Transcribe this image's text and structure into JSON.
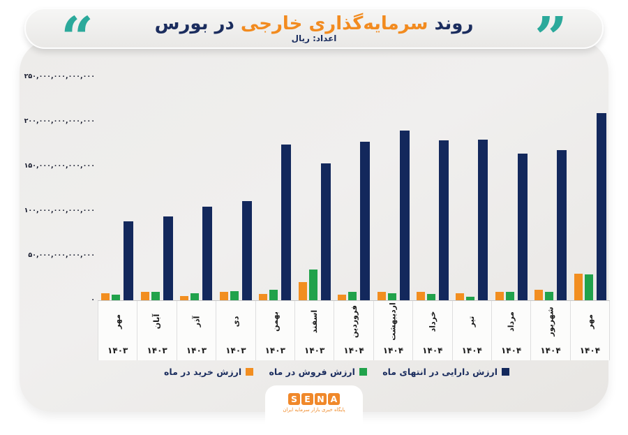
{
  "header": {
    "title": {
      "part1": "روند",
      "part2": "سرمایه‌گذاری خارجی",
      "part3": "در بورس"
    },
    "subtitle": "اعداد: ریال",
    "quote_open": "“",
    "quote_close": "”",
    "colors": {
      "title_navy": "#1b2d5e",
      "title_orange": "#f28b1f",
      "quote_teal": "#2ba99b"
    }
  },
  "chart_data": {
    "type": "bar",
    "title": "روند سرمایه‌گذاری خارجی در بورس",
    "unit_label": "اعداد: ریال",
    "value_unit": "trillion rial (هزار میلیارد ریال), estimated from axis",
    "ylim_trillion": [
      0,
      250
    ],
    "grid": false,
    "legend_position": "bottom",
    "y_ticks": [
      {
        "label": "۲۵۰,۰۰۰,۰۰۰,۰۰۰,۰۰۰",
        "value": 250
      },
      {
        "label": "۲۰۰,۰۰۰,۰۰۰,۰۰۰,۰۰۰",
        "value": 200
      },
      {
        "label": "۱۵۰,۰۰۰,۰۰۰,۰۰۰,۰۰۰",
        "value": 150
      },
      {
        "label": "۱۰۰,۰۰۰,۰۰۰,۰۰۰,۰۰۰",
        "value": 100
      },
      {
        "label": "۵۰,۰۰۰,۰۰۰,۰۰۰,۰۰۰",
        "value": 50
      },
      {
        "label": "۰",
        "value": 0
      }
    ],
    "categories": [
      {
        "month": "مهر",
        "year": "۱۴۰۳"
      },
      {
        "month": "آبان",
        "year": "۱۴۰۳"
      },
      {
        "month": "آذر",
        "year": "۱۴۰۳"
      },
      {
        "month": "دی",
        "year": "۱۴۰۳"
      },
      {
        "month": "بهمن",
        "year": "۱۴۰۳"
      },
      {
        "month": "اسفند",
        "year": "۱۴۰۳"
      },
      {
        "month": "فروردین",
        "year": "۱۴۰۴"
      },
      {
        "month": "اردیبهشت",
        "year": "۱۴۰۴"
      },
      {
        "month": "خرداد",
        "year": "۱۴۰۴"
      },
      {
        "month": "تیر",
        "year": "۱۴۰۴"
      },
      {
        "month": "مرداد",
        "year": "۱۴۰۴"
      },
      {
        "month": "شهریور",
        "year": "۱۴۰۴"
      },
      {
        "month": "مهر",
        "year": "۱۴۰۴"
      }
    ],
    "series": [
      {
        "id": "buy",
        "name": "ارزش خرید در ماه",
        "color": "#f28e20",
        "values_trillion_rial": [
          8,
          9,
          5,
          9,
          7,
          20,
          6,
          9,
          9,
          8,
          9,
          12,
          30
        ]
      },
      {
        "id": "sell",
        "name": "ارزش فروش در ماه",
        "color": "#21a24b",
        "values_trillion_rial": [
          6,
          9,
          8,
          10,
          12,
          34,
          9,
          8,
          7,
          4,
          9,
          9,
          29
        ]
      },
      {
        "id": "assets",
        "name": "ارزش دارایی در انتهای ماه",
        "color": "#13285c",
        "values_trillion_rial": [
          88,
          94,
          105,
          111,
          174,
          153,
          177,
          190,
          179,
          180,
          164,
          168,
          209
        ]
      }
    ]
  },
  "footer": {
    "logo_letters": [
      "S",
      "E",
      "N",
      "A"
    ],
    "logo_caption": "پایگاه خبری بازار سرمایه ایران"
  }
}
